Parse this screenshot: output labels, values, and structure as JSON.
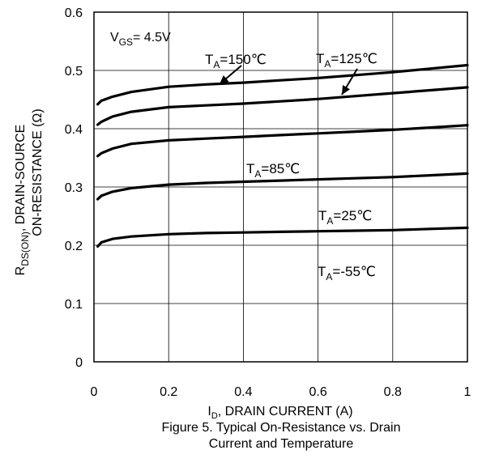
{
  "chart_data": {
    "type": "line",
    "title": "",
    "caption_lines": [
      "Figure 5. Typical On-Resistance vs. Drain",
      "Current and Temperature"
    ],
    "xlabel_main": "I",
    "xlabel_sub": "D",
    "xlabel_rest": ", DRAIN CURRENT (A)",
    "ylabel_line1_main": "R",
    "ylabel_line1_sub": "DS(ON)",
    "ylabel_line1_rest": ",   DRAIN-SOURCE",
    "ylabel_line2": "ON-RESISTANCE (Ω)",
    "xlim": [
      0,
      1
    ],
    "ylim": [
      0,
      0.6
    ],
    "x_ticks": [
      0,
      0.2,
      0.4,
      0.6,
      0.8,
      1
    ],
    "x_tick_labels": [
      "0",
      "0.2",
      "0.4",
      "0.6",
      "0.8",
      "1"
    ],
    "y_ticks": [
      0,
      0.1,
      0.2,
      0.3,
      0.4,
      0.5,
      0.6
    ],
    "y_tick_labels": [
      "0",
      "0.1",
      "0.2",
      "0.3",
      "0.4",
      "0.5",
      "0.6"
    ],
    "grid": true,
    "condition": {
      "main": "V",
      "sub": "GS",
      "rest": "= 4.5V"
    },
    "series": [
      {
        "name": "T_A=150℃",
        "x": [
          0.01,
          0.02,
          0.05,
          0.1,
          0.2,
          0.3,
          0.4,
          0.5,
          0.6,
          0.7,
          0.8,
          0.9,
          1.0
        ],
        "values": [
          0.442,
          0.448,
          0.455,
          0.463,
          0.472,
          0.476,
          0.479,
          0.483,
          0.487,
          0.492,
          0.497,
          0.503,
          0.509
        ]
      },
      {
        "name": "T_A=125℃",
        "x": [
          0.01,
          0.02,
          0.05,
          0.1,
          0.2,
          0.3,
          0.4,
          0.5,
          0.6,
          0.7,
          0.8,
          0.9,
          1.0
        ],
        "values": [
          0.407,
          0.412,
          0.421,
          0.429,
          0.437,
          0.44,
          0.443,
          0.447,
          0.451,
          0.456,
          0.461,
          0.466,
          0.471
        ]
      },
      {
        "name": "T_A=85℃",
        "x": [
          0.01,
          0.02,
          0.05,
          0.1,
          0.2,
          0.3,
          0.4,
          0.5,
          0.6,
          0.7,
          0.8,
          0.9,
          1.0
        ],
        "values": [
          0.353,
          0.358,
          0.366,
          0.374,
          0.38,
          0.383,
          0.386,
          0.389,
          0.392,
          0.395,
          0.398,
          0.402,
          0.406
        ]
      },
      {
        "name": "T_A=25℃",
        "x": [
          0.01,
          0.02,
          0.05,
          0.1,
          0.2,
          0.3,
          0.4,
          0.5,
          0.6,
          0.7,
          0.8,
          0.9,
          1.0
        ],
        "values": [
          0.279,
          0.285,
          0.292,
          0.298,
          0.304,
          0.307,
          0.309,
          0.311,
          0.313,
          0.315,
          0.317,
          0.32,
          0.323
        ]
      },
      {
        "name": "T_A=-55℃",
        "x": [
          0.01,
          0.02,
          0.05,
          0.1,
          0.2,
          0.3,
          0.4,
          0.5,
          0.6,
          0.7,
          0.8,
          0.9,
          1.0
        ],
        "values": [
          0.198,
          0.205,
          0.211,
          0.215,
          0.219,
          0.221,
          0.222,
          0.223,
          0.224,
          0.225,
          0.226,
          0.228,
          0.23
        ]
      }
    ],
    "annotations": [
      {
        "main": "T",
        "sub": "A",
        "rest": "=150℃",
        "series": "T_A=150℃"
      },
      {
        "main": "T",
        "sub": "A",
        "rest": "=125℃",
        "series": "T_A=125℃"
      },
      {
        "main": "T",
        "sub": "A",
        "rest": "=85℃",
        "series": "T_A=85℃"
      },
      {
        "main": "T",
        "sub": "A",
        "rest": "=25℃",
        "series": "T_A=25℃"
      },
      {
        "main": "T",
        "sub": "A",
        "rest": "=-55℃",
        "series": "T_A=-55℃"
      }
    ]
  }
}
